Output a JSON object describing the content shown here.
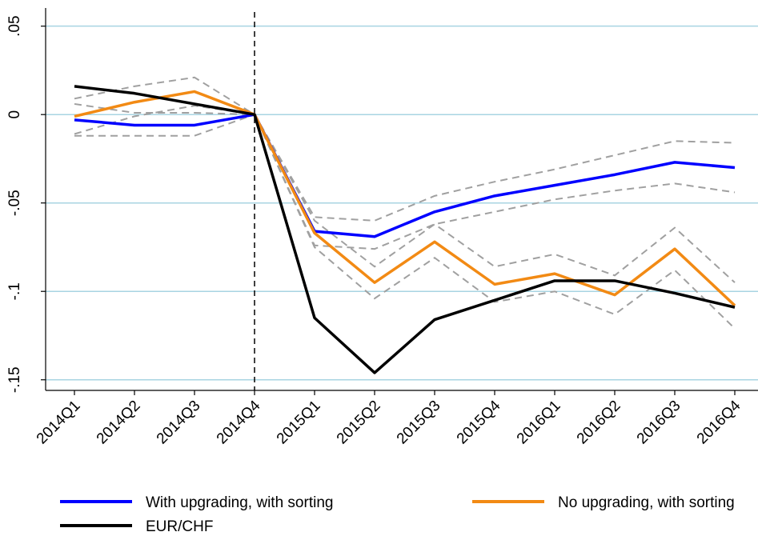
{
  "chart_data": {
    "type": "line",
    "categories": [
      "2014Q1",
      "2014Q2",
      "2014Q3",
      "2014Q4",
      "2015Q1",
      "2015Q2",
      "2015Q3",
      "2015Q4",
      "2016Q1",
      "2016Q2",
      "2016Q3",
      "2016Q4"
    ],
    "series": [
      {
        "name": "With upgrading, with sorting",
        "color": "#0000ff",
        "values": [
          -0.003,
          -0.006,
          -0.006,
          0,
          -0.066,
          -0.069,
          -0.055,
          -0.046,
          -0.04,
          -0.034,
          -0.027,
          -0.03
        ],
        "upper": [
          0.006,
          0.001,
          0.001,
          0,
          -0.058,
          -0.06,
          -0.046,
          -0.038,
          -0.031,
          -0.023,
          -0.015,
          -0.016
        ],
        "lower": [
          -0.012,
          -0.012,
          -0.012,
          0,
          -0.074,
          -0.076,
          -0.062,
          -0.055,
          -0.048,
          -0.043,
          -0.039,
          -0.044
        ]
      },
      {
        "name": "No upgrading, with sorting",
        "color": "#f28a14",
        "values": [
          -0.001,
          0.007,
          0.013,
          0,
          -0.067,
          -0.095,
          -0.072,
          -0.096,
          -0.09,
          -0.102,
          -0.076,
          -0.108
        ],
        "upper": [
          0.009,
          0.016,
          0.021,
          0,
          -0.06,
          -0.086,
          -0.062,
          -0.086,
          -0.079,
          -0.091,
          -0.064,
          -0.095
        ],
        "lower": [
          -0.011,
          -0.001,
          0.005,
          0,
          -0.075,
          -0.104,
          -0.081,
          -0.106,
          -0.1,
          -0.113,
          -0.088,
          -0.121
        ]
      },
      {
        "name": "EUR/CHF",
        "color": "#000000",
        "values": [
          0.016,
          0.012,
          0.006,
          0,
          -0.115,
          -0.146,
          -0.116,
          -0.105,
          -0.094,
          -0.094,
          -0.101,
          -0.109
        ]
      }
    ],
    "interval_color": "#a0a0a0",
    "ylim": [
      -0.156,
      0.058
    ],
    "yticks": [
      {
        "value": 0.05,
        "label": ".05"
      },
      0,
      {
        "value": -0.05,
        "label": "-.05"
      },
      {
        "value": -0.1,
        "label": "-.1"
      },
      {
        "value": -0.15,
        "label": "-.15"
      }
    ],
    "grid": true,
    "grid_color": "#a8d4e2",
    "vline": "2014Q4",
    "legend": "bottom"
  }
}
